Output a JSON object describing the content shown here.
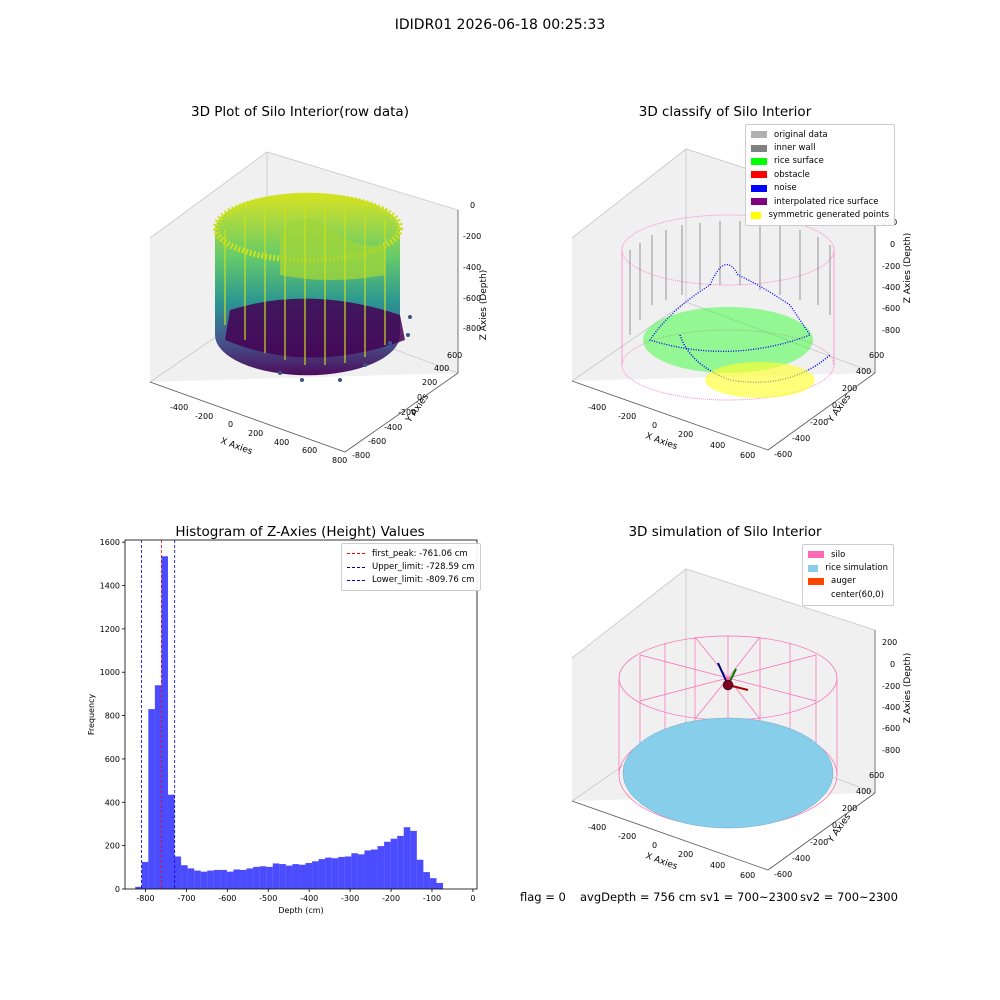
{
  "figure": {
    "suptitle": "IDIDR01 2026-06-18 00:25:33",
    "status": {
      "flag": "flag = 0",
      "avg_depth": "avgDepth = 756 cm",
      "sv1": "sv1 = 700~2300",
      "sv2": "sv2 = 700~2300"
    }
  },
  "panels": {
    "raw": {
      "title": "3D Plot of Silo Interior(row data)",
      "xlabel": "X Axies",
      "ylabel": "Y Axies",
      "zlabel": "Z Axies (Depth)",
      "xticks": [
        "-400",
        "-200",
        "0",
        "200",
        "400",
        "600",
        "800"
      ],
      "yticks": [
        "-800",
        "-600",
        "-400",
        "-200",
        "0",
        "200",
        "400",
        "600"
      ],
      "zticks": [
        "0",
        "-200",
        "-400",
        "-600",
        "-800"
      ]
    },
    "classify": {
      "title": "3D classify of Silo Interior",
      "xlabel": "X Axies",
      "ylabel": "Y Axies",
      "zlabel": "Z Axies (Depth)",
      "xticks": [
        "-400",
        "-200",
        "0",
        "200",
        "400",
        "600"
      ],
      "yticks": [
        "-600",
        "-400",
        "-200",
        "0",
        "200",
        "400",
        "600"
      ],
      "zticks": [
        "200",
        "0",
        "-200",
        "-400",
        "-600",
        "-800"
      ],
      "legend": [
        {
          "label": "original data",
          "color": "#b0b0b0"
        },
        {
          "label": "inner wall",
          "color": "#808080"
        },
        {
          "label": "rice surface",
          "color": "#00ff00"
        },
        {
          "label": "obstacle",
          "color": "#ff0000"
        },
        {
          "label": "noise",
          "color": "#0000ff"
        },
        {
          "label": "interpolated rice surface",
          "color": "#800080"
        },
        {
          "label": "symmetric generated points",
          "color": "#ffff00"
        }
      ]
    },
    "simulation": {
      "title": "3D simulation of Silo Interior",
      "xlabel": "X Axies",
      "ylabel": "Y Axies",
      "zlabel": "Z Axies (Depth)",
      "xticks": [
        "-400",
        "-200",
        "0",
        "200",
        "400",
        "600"
      ],
      "yticks": [
        "-600",
        "-400",
        "-200",
        "0",
        "200",
        "400",
        "600"
      ],
      "zticks": [
        "200",
        "0",
        "-200",
        "-400",
        "-600",
        "-800"
      ],
      "legend": [
        {
          "label": "silo",
          "color": "#ff69b4"
        },
        {
          "label": "rice simulation",
          "color": "#87ceeb"
        },
        {
          "label": "auger",
          "color": "#ff4500"
        },
        {
          "label": "center(60,0)",
          "color": ""
        }
      ]
    }
  },
  "chart_data": [
    {
      "type": "bar",
      "title": "Histogram of Z-Axies (Height) Values",
      "xlabel": "Depth (cm)",
      "ylabel": "Frequency",
      "xlim": [
        -850,
        10
      ],
      "ylim": [
        0,
        1610
      ],
      "xticks": [
        -800,
        -700,
        -600,
        -500,
        -400,
        -300,
        -200,
        -100,
        0
      ],
      "yticks": [
        0,
        200,
        400,
        600,
        800,
        1000,
        1200,
        1400,
        1600
      ],
      "bin_start": -825,
      "bin_width": 16,
      "values": [
        10,
        125,
        830,
        940,
        1535,
        435,
        150,
        110,
        95,
        85,
        80,
        85,
        88,
        88,
        80,
        90,
        88,
        95,
        102,
        105,
        102,
        118,
        115,
        108,
        115,
        112,
        120,
        128,
        138,
        145,
        142,
        148,
        150,
        165,
        160,
        178,
        182,
        198,
        218,
        232,
        245,
        285,
        268,
        135,
        78,
        50,
        28
      ],
      "bar_color": "#0000ff",
      "grid": false,
      "legend_position": "top-right",
      "vlines": [
        {
          "name": "first_peak: -761.06 cm",
          "x": -761.06,
          "color": "#ff0000"
        },
        {
          "name": "Upper_limit: -728.59 cm",
          "x": -728.59,
          "color": "#0000cd"
        },
        {
          "name": "Lower_limit: -809.76 cm",
          "x": -809.76,
          "color": "#0000cd"
        }
      ]
    }
  ]
}
